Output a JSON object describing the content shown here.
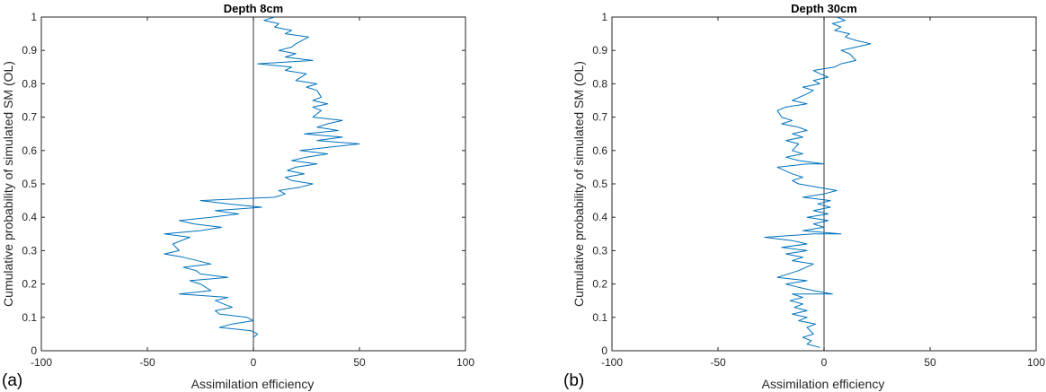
{
  "chart_data": [
    {
      "type": "line",
      "panel_label": "(a)",
      "title": "Depth 8cm",
      "xlabel": "Assimilation efficiency",
      "ylabel": "Cumulative probability of simulated SM (OL)",
      "xlim": [
        -100,
        100
      ],
      "ylim": [
        0,
        1
      ],
      "xticks": [
        "-100",
        "-50",
        "0",
        "50",
        "100"
      ],
      "yticks": [
        "0",
        "0.1",
        "0.2",
        "0.3",
        "0.4",
        "0.5",
        "0.6",
        "0.7",
        "0.8",
        "0.9",
        "1"
      ],
      "zero_line": 0,
      "series": [
        {
          "color": "#0072BD",
          "points": [
            [
              0,
              0.04
            ],
            [
              2,
              0.05
            ],
            [
              -1,
              0.06
            ],
            [
              -16,
              0.07
            ],
            [
              -10,
              0.08
            ],
            [
              0,
              0.09
            ],
            [
              -3,
              0.1
            ],
            [
              -16,
              0.11
            ],
            [
              -18,
              0.12
            ],
            [
              -10,
              0.13
            ],
            [
              -18,
              0.15
            ],
            [
              -12,
              0.16
            ],
            [
              -35,
              0.17
            ],
            [
              -20,
              0.18
            ],
            [
              -25,
              0.2
            ],
            [
              -30,
              0.21
            ],
            [
              -12,
              0.22
            ],
            [
              -25,
              0.23
            ],
            [
              -27,
              0.24
            ],
            [
              -33,
              0.25
            ],
            [
              -20,
              0.26
            ],
            [
              -33,
              0.28
            ],
            [
              -42,
              0.29
            ],
            [
              -35,
              0.3
            ],
            [
              -38,
              0.32
            ],
            [
              -30,
              0.34
            ],
            [
              -42,
              0.35
            ],
            [
              -25,
              0.36
            ],
            [
              -15,
              0.37
            ],
            [
              -28,
              0.38
            ],
            [
              -35,
              0.39
            ],
            [
              -20,
              0.4
            ],
            [
              -7,
              0.41
            ],
            [
              -18,
              0.42
            ],
            [
              4,
              0.43
            ],
            [
              -12,
              0.44
            ],
            [
              -25,
              0.45
            ],
            [
              10,
              0.46
            ],
            [
              15,
              0.47
            ],
            [
              12,
              0.48
            ],
            [
              22,
              0.49
            ],
            [
              28,
              0.5
            ],
            [
              18,
              0.51
            ],
            [
              15,
              0.52
            ],
            [
              24,
              0.53
            ],
            [
              16,
              0.54
            ],
            [
              20,
              0.55
            ],
            [
              30,
              0.56
            ],
            [
              18,
              0.57
            ],
            [
              25,
              0.58
            ],
            [
              35,
              0.59
            ],
            [
              22,
              0.6
            ],
            [
              50,
              0.62
            ],
            [
              30,
              0.63
            ],
            [
              42,
              0.64
            ],
            [
              24,
              0.65
            ],
            [
              40,
              0.66
            ],
            [
              30,
              0.67
            ],
            [
              35,
              0.68
            ],
            [
              42,
              0.69
            ],
            [
              28,
              0.7
            ],
            [
              30,
              0.71
            ],
            [
              32,
              0.72
            ],
            [
              28,
              0.73
            ],
            [
              35,
              0.74
            ],
            [
              28,
              0.75
            ],
            [
              32,
              0.76
            ],
            [
              30,
              0.78
            ],
            [
              25,
              0.79
            ],
            [
              30,
              0.8
            ],
            [
              20,
              0.81
            ],
            [
              25,
              0.83
            ],
            [
              15,
              0.84
            ],
            [
              18,
              0.85
            ],
            [
              2,
              0.86
            ],
            [
              28,
              0.87
            ],
            [
              15,
              0.88
            ],
            [
              20,
              0.89
            ],
            [
              12,
              0.9
            ],
            [
              18,
              0.91
            ],
            [
              20,
              0.92
            ],
            [
              26,
              0.94
            ],
            [
              15,
              0.95
            ],
            [
              18,
              0.96
            ],
            [
              10,
              0.97
            ],
            [
              12,
              0.98
            ],
            [
              5,
              0.99
            ],
            [
              10,
              1.0
            ]
          ]
        }
      ]
    },
    {
      "type": "line",
      "panel_label": "(b)",
      "title": "Depth 30cm",
      "xlabel": "Assimilation efficiency",
      "ylabel": "Cumulative probability of simulated SM (OL)",
      "xlim": [
        -100,
        100
      ],
      "ylim": [
        0,
        1
      ],
      "xticks": [
        "-100",
        "-50",
        "0",
        "50",
        "100"
      ],
      "yticks": [
        "0",
        "0.1",
        "0.2",
        "0.3",
        "0.4",
        "0.5",
        "0.6",
        "0.7",
        "0.8",
        "0.9",
        "1"
      ],
      "zero_line": 0,
      "series": [
        {
          "color": "#0072BD",
          "points": [
            [
              -2,
              0.01
            ],
            [
              -8,
              0.02
            ],
            [
              -6,
              0.03
            ],
            [
              -10,
              0.04
            ],
            [
              -5,
              0.05
            ],
            [
              -8,
              0.07
            ],
            [
              -4,
              0.08
            ],
            [
              -12,
              0.09
            ],
            [
              -8,
              0.1
            ],
            [
              -15,
              0.11
            ],
            [
              -8,
              0.12
            ],
            [
              -14,
              0.13
            ],
            [
              -10,
              0.14
            ],
            [
              -16,
              0.15
            ],
            [
              -10,
              0.16
            ],
            [
              -15,
              0.17
            ],
            [
              4,
              0.17
            ],
            [
              -5,
              0.18
            ],
            [
              -12,
              0.19
            ],
            [
              -18,
              0.2
            ],
            [
              -8,
              0.21
            ],
            [
              -22,
              0.22
            ],
            [
              -12,
              0.24
            ],
            [
              -5,
              0.26
            ],
            [
              -15,
              0.27
            ],
            [
              -10,
              0.28
            ],
            [
              -18,
              0.29
            ],
            [
              -8,
              0.3
            ],
            [
              -20,
              0.31
            ],
            [
              -8,
              0.32
            ],
            [
              -15,
              0.33
            ],
            [
              -28,
              0.34
            ],
            [
              -5,
              0.35
            ],
            [
              8,
              0.35
            ],
            [
              -10,
              0.36
            ],
            [
              0,
              0.37
            ],
            [
              -5,
              0.38
            ],
            [
              2,
              0.39
            ],
            [
              -8,
              0.4
            ],
            [
              2,
              0.41
            ],
            [
              -5,
              0.42
            ],
            [
              3,
              0.43
            ],
            [
              -3,
              0.44
            ],
            [
              3,
              0.45
            ],
            [
              -10,
              0.46
            ],
            [
              0,
              0.47
            ],
            [
              6,
              0.48
            ],
            [
              -3,
              0.49
            ],
            [
              -12,
              0.5
            ],
            [
              -15,
              0.51
            ],
            [
              -10,
              0.52
            ],
            [
              -15,
              0.53
            ],
            [
              -22,
              0.55
            ],
            [
              -8,
              0.56
            ],
            [
              0,
              0.56
            ],
            [
              -12,
              0.57
            ],
            [
              -18,
              0.58
            ],
            [
              -10,
              0.59
            ],
            [
              -15,
              0.6
            ],
            [
              -12,
              0.62
            ],
            [
              -18,
              0.63
            ],
            [
              -10,
              0.64
            ],
            [
              -15,
              0.65
            ],
            [
              -8,
              0.66
            ],
            [
              -12,
              0.67
            ],
            [
              -20,
              0.68
            ],
            [
              -15,
              0.69
            ],
            [
              -20,
              0.7
            ],
            [
              -22,
              0.72
            ],
            [
              -18,
              0.73
            ],
            [
              -8,
              0.74
            ],
            [
              -15,
              0.75
            ],
            [
              -8,
              0.77
            ],
            [
              -5,
              0.78
            ],
            [
              -10,
              0.79
            ],
            [
              -2,
              0.8
            ],
            [
              -5,
              0.81
            ],
            [
              2,
              0.82
            ],
            [
              -2,
              0.83
            ],
            [
              -5,
              0.84
            ],
            [
              5,
              0.85
            ],
            [
              8,
              0.86
            ],
            [
              15,
              0.87
            ],
            [
              12,
              0.89
            ],
            [
              8,
              0.9
            ],
            [
              22,
              0.92
            ],
            [
              15,
              0.93
            ],
            [
              10,
              0.94
            ],
            [
              12,
              0.95
            ],
            [
              5,
              0.96
            ],
            [
              8,
              0.97
            ],
            [
              4,
              0.98
            ],
            [
              10,
              0.99
            ],
            [
              6,
              1.0
            ]
          ]
        }
      ]
    }
  ]
}
